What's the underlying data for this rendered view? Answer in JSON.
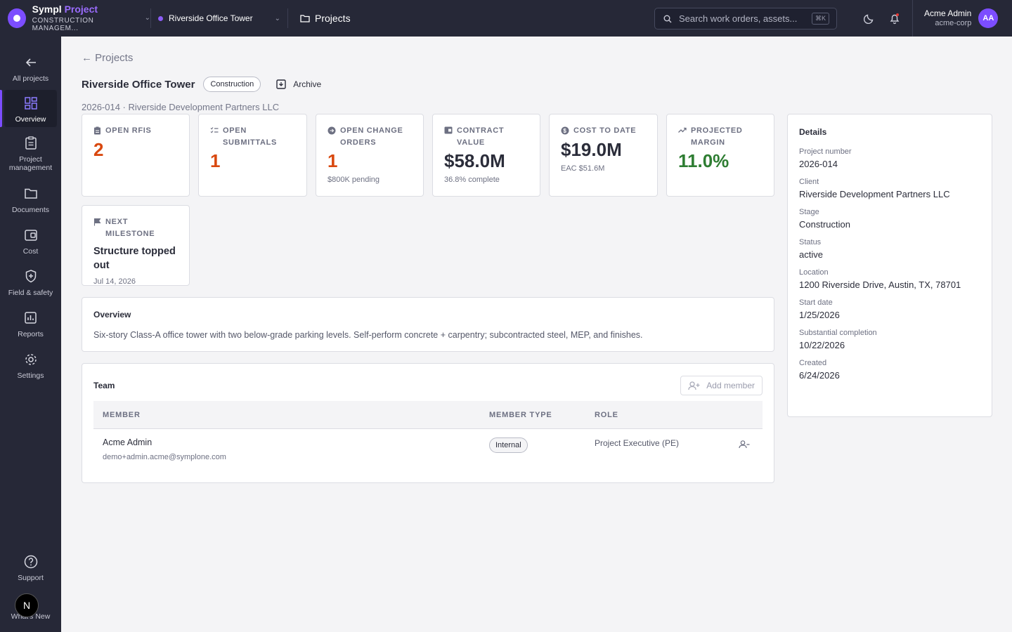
{
  "app": {
    "name": "Sympl",
    "name_accent": "Project",
    "subtitle": "CONSTRUCTION MANAGEM..."
  },
  "header": {
    "project_selector": "Riverside Office Tower",
    "breadcrumb": "Projects",
    "search_placeholder": "Search work orders, assets...",
    "search_shortcut": "⌘K",
    "user_name": "Acme Admin",
    "user_org": "acme-corp",
    "avatar_initials": "AA"
  },
  "sidebar": {
    "items": [
      {
        "label": "All projects",
        "icon": "arrow-left-icon"
      },
      {
        "label": "Overview",
        "icon": "dashboard-icon",
        "active": true
      },
      {
        "label": "Project management",
        "icon": "clipboard-icon"
      },
      {
        "label": "Documents",
        "icon": "folder-icon"
      },
      {
        "label": "Cost",
        "icon": "wallet-icon"
      },
      {
        "label": "Field & safety",
        "icon": "shield-icon"
      },
      {
        "label": "Reports",
        "icon": "chart-icon"
      },
      {
        "label": "Settings",
        "icon": "gear-icon"
      }
    ],
    "support": "Support",
    "whats_new": "What's New",
    "badge": "N"
  },
  "page": {
    "back_link": "← Projects",
    "title": "Riverside Office Tower",
    "stage_pill": "Construction",
    "archive_label": "Archive",
    "subtitle": "2026-014 · Riverside Development Partners LLC"
  },
  "stats": [
    {
      "label": "OPEN RFIS",
      "value": "2",
      "sub": "",
      "tone": "orange"
    },
    {
      "label": "OPEN SUBMITTALS",
      "value": "1",
      "sub": "",
      "tone": "orange"
    },
    {
      "label": "OPEN CHANGE ORDERS",
      "value": "1",
      "sub": "$800K pending",
      "tone": "orange"
    },
    {
      "label": "CONTRACT VALUE",
      "value": "$58.0M",
      "sub": "36.8% complete",
      "tone": "dark"
    },
    {
      "label": "COST TO DATE",
      "value": "$19.0M",
      "sub": "EAC $51.6M",
      "tone": "dark"
    },
    {
      "label": "PROJECTED MARGIN",
      "value": "11.0%",
      "sub": "",
      "tone": "green"
    }
  ],
  "milestone": {
    "label": "NEXT MILESTONE",
    "title": "Structure topped out",
    "date": "Jul 14, 2026"
  },
  "overview": {
    "title": "Overview",
    "text": "Six-story Class-A office tower with two below-grade parking levels. Self-perform concrete + carpentry; subcontracted steel, MEP, and finishes."
  },
  "team": {
    "title": "Team",
    "add_member": "Add member",
    "columns": [
      "MEMBER",
      "MEMBER TYPE",
      "ROLE"
    ],
    "rows": [
      {
        "name": "Acme Admin",
        "email": "demo+admin.acme@symplone.com",
        "type": "Internal",
        "role": "Project Executive (PE)"
      }
    ]
  },
  "details": {
    "title": "Details",
    "fields": [
      {
        "label": "Project number",
        "value": "2026-014"
      },
      {
        "label": "Client",
        "value": "Riverside Development Partners LLC"
      },
      {
        "label": "Stage",
        "value": "Construction"
      },
      {
        "label": "Status",
        "value": "active"
      },
      {
        "label": "Location",
        "value": "1200 Riverside Drive, Austin, TX, 78701"
      },
      {
        "label": "Start date",
        "value": "1/25/2026"
      },
      {
        "label": "Substantial completion",
        "value": "10/22/2026"
      },
      {
        "label": "Created",
        "value": "6/24/2026"
      }
    ]
  },
  "colors": {
    "accent": "#7c4dff",
    "orange": "#d9480f",
    "green": "#2e7d32",
    "sidebar": "#262837"
  }
}
